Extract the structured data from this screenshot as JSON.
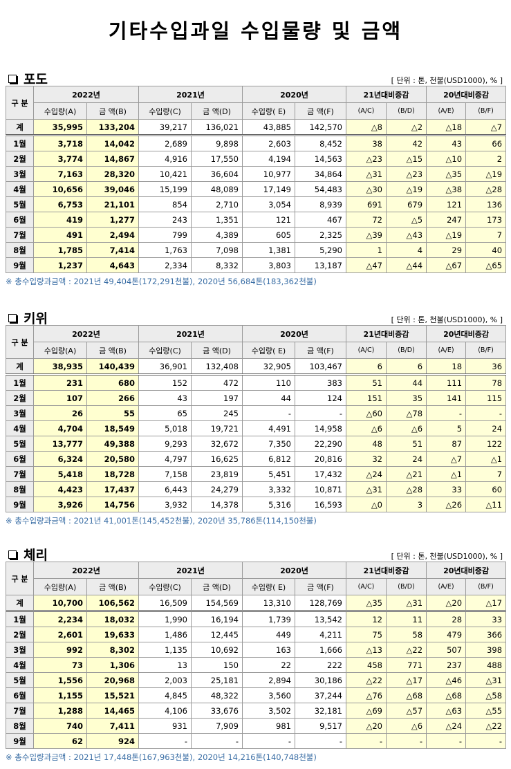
{
  "title": "기타수입과일 수입물량 및 금액",
  "sections": [
    {
      "name": "포도",
      "unit": "[ 단위 : 톤, 천불(USD1000), % ]",
      "header": {
        "label": "구 분",
        "groups": [
          "2022년",
          "2021년",
          "2020년",
          "21년대비증감",
          "20년대비증감"
        ],
        "sub": [
          "수입량(A)",
          "금 액(B)",
          "수입량(C)",
          "금 액(D)",
          "수입량( E)",
          "금 액(F)",
          "(A/C)",
          "(B/D)",
          "(A/E)",
          "(B/F)"
        ]
      },
      "rows": [
        [
          "계",
          "35,995",
          "133,204",
          "39,217",
          "136,021",
          "43,885",
          "142,570",
          "△8",
          "△2",
          "△18",
          "△7"
        ],
        [
          "1월",
          "3,718",
          "14,042",
          "2,689",
          "9,898",
          "2,603",
          "8,452",
          "38",
          "42",
          "43",
          "66"
        ],
        [
          "2월",
          "3,774",
          "14,867",
          "4,916",
          "17,550",
          "4,194",
          "14,563",
          "△23",
          "△15",
          "△10",
          "2"
        ],
        [
          "3월",
          "7,163",
          "28,320",
          "10,421",
          "36,604",
          "10,977",
          "34,864",
          "△31",
          "△23",
          "△35",
          "△19"
        ],
        [
          "4월",
          "10,656",
          "39,046",
          "15,199",
          "48,089",
          "17,149",
          "54,483",
          "△30",
          "△19",
          "△38",
          "△28"
        ],
        [
          "5월",
          "6,753",
          "21,101",
          "854",
          "2,710",
          "3,054",
          "8,939",
          "691",
          "679",
          "121",
          "136"
        ],
        [
          "6월",
          "419",
          "1,277",
          "243",
          "1,351",
          "121",
          "467",
          "72",
          "△5",
          "247",
          "173"
        ],
        [
          "7월",
          "491",
          "2,494",
          "799",
          "4,389",
          "605",
          "2,325",
          "△39",
          "△43",
          "△19",
          "7"
        ],
        [
          "8월",
          "1,785",
          "7,414",
          "1,763",
          "7,098",
          "1,381",
          "5,290",
          "1",
          "4",
          "29",
          "40"
        ],
        [
          "9월",
          "1,237",
          "4,643",
          "2,334",
          "8,332",
          "3,803",
          "13,187",
          "△47",
          "△44",
          "△67",
          "△65"
        ]
      ],
      "note": "※ 총수입량과금액 : 2021년 49,404톤(172,291천불),  2020년 56,684톤(183,362천불)"
    },
    {
      "name": "키위",
      "unit": "[ 단위 : 톤, 천불(USD1000), % ]",
      "header": {
        "label": "구 분",
        "groups": [
          "2022년",
          "2021년",
          "2020년",
          "21년대비증감",
          "20년대비증감"
        ],
        "sub": [
          "수입량(A)",
          "금 액(B)",
          "수입량(C)",
          "금 액(D)",
          "수입량( E)",
          "금 액(F)",
          "(A/C)",
          "(B/D)",
          "(A/E)",
          "(B/F)"
        ]
      },
      "rows": [
        [
          "계",
          "38,935",
          "140,439",
          "36,901",
          "132,408",
          "32,905",
          "103,467",
          "6",
          "6",
          "18",
          "36"
        ],
        [
          "1월",
          "231",
          "680",
          "152",
          "472",
          "110",
          "383",
          "51",
          "44",
          "111",
          "78"
        ],
        [
          "2월",
          "107",
          "266",
          "43",
          "197",
          "44",
          "124",
          "151",
          "35",
          "141",
          "115"
        ],
        [
          "3월",
          "26",
          "55",
          "65",
          "245",
          "-",
          "-",
          "△60",
          "△78",
          "-",
          "-"
        ],
        [
          "4월",
          "4,704",
          "18,549",
          "5,018",
          "19,721",
          "4,491",
          "14,958",
          "△6",
          "△6",
          "5",
          "24"
        ],
        [
          "5월",
          "13,777",
          "49,388",
          "9,293",
          "32,672",
          "7,350",
          "22,290",
          "48",
          "51",
          "87",
          "122"
        ],
        [
          "6월",
          "6,324",
          "20,580",
          "4,797",
          "16,625",
          "6,812",
          "20,816",
          "32",
          "24",
          "△7",
          "△1"
        ],
        [
          "7월",
          "5,418",
          "18,728",
          "7,158",
          "23,819",
          "5,451",
          "17,432",
          "△24",
          "△21",
          "△1",
          "7"
        ],
        [
          "8월",
          "4,423",
          "17,437",
          "6,443",
          "24,279",
          "3,332",
          "10,871",
          "△31",
          "△28",
          "33",
          "60"
        ],
        [
          "9월",
          "3,926",
          "14,756",
          "3,932",
          "14,378",
          "5,316",
          "16,593",
          "△0",
          "3",
          "△26",
          "△11"
        ]
      ],
      "note": "※ 총수입량과금액 : 2021년 41,001톤(145,452천불), 2020년 35,786톤(114,150천불)"
    },
    {
      "name": "체리",
      "unit": "[ 단위 : 톤, 천불(USD1000), % ]",
      "header": {
        "label": "구 분",
        "groups": [
          "2022년",
          "2021년",
          "2020년",
          "21년대비증감",
          "20년대비증감"
        ],
        "sub": [
          "수입량(A)",
          "금 액(B)",
          "수입량(C)",
          "금 액(D)",
          "수입량( E)",
          "금 액(F)",
          "(A/C)",
          "(B/D)",
          "(A/E)",
          "(B/F)"
        ]
      },
      "rows": [
        [
          "계",
          "10,700",
          "106,562",
          "16,509",
          "154,569",
          "13,310",
          "128,769",
          "△35",
          "△31",
          "△20",
          "△17"
        ],
        [
          "1월",
          "2,234",
          "18,032",
          "1,990",
          "16,194",
          "1,739",
          "13,542",
          "12",
          "11",
          "28",
          "33"
        ],
        [
          "2월",
          "2,601",
          "19,633",
          "1,486",
          "12,445",
          "449",
          "4,211",
          "75",
          "58",
          "479",
          "366"
        ],
        [
          "3월",
          "992",
          "8,302",
          "1,135",
          "10,692",
          "163",
          "1,666",
          "△13",
          "△22",
          "507",
          "398"
        ],
        [
          "4월",
          "73",
          "1,306",
          "13",
          "150",
          "22",
          "222",
          "458",
          "771",
          "237",
          "488"
        ],
        [
          "5월",
          "1,556",
          "20,968",
          "2,003",
          "25,181",
          "2,894",
          "30,186",
          "△22",
          "△17",
          "△46",
          "△31"
        ],
        [
          "6월",
          "1,155",
          "15,521",
          "4,845",
          "48,322",
          "3,560",
          "37,244",
          "△76",
          "△68",
          "△68",
          "△58"
        ],
        [
          "7월",
          "1,288",
          "14,465",
          "4,106",
          "33,676",
          "3,502",
          "32,181",
          "△69",
          "△57",
          "△63",
          "△55"
        ],
        [
          "8월",
          "740",
          "7,411",
          "931",
          "7,909",
          "981",
          "9,517",
          "△20",
          "△6",
          "△24",
          "△22"
        ],
        [
          "9월",
          "62",
          "924",
          "-",
          "-",
          "-",
          "-",
          "-",
          "-",
          "-",
          "-"
        ]
      ],
      "note": "※ 총수입량과금액 : 2021년 17,448톤(167,963천불), 2020년 14,216톤(140,748천불)"
    }
  ]
}
